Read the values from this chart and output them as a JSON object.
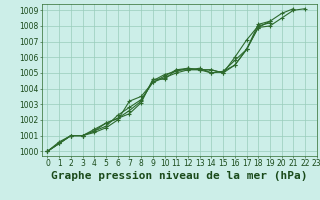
{
  "title": "Graphe pression niveau de la mer (hPa)",
  "bg_color": "#cceee8",
  "grid_color": "#99ccbb",
  "line_color": "#2d6a2d",
  "xlim": [
    -0.5,
    23
  ],
  "ylim": [
    999.7,
    1009.4
  ],
  "xticks": [
    0,
    1,
    2,
    3,
    4,
    5,
    6,
    7,
    8,
    9,
    10,
    11,
    12,
    13,
    14,
    15,
    16,
    17,
    18,
    19,
    20,
    21,
    22,
    23
  ],
  "yticks": [
    1000,
    1001,
    1002,
    1003,
    1004,
    1005,
    1006,
    1007,
    1008,
    1009
  ],
  "series": [
    [
      1000.0,
      1000.6,
      1001.0,
      1001.0,
      1001.4,
      1001.8,
      1002.1,
      1002.4,
      1003.1,
      1004.6,
      1004.6,
      1005.2,
      1005.2,
      1005.3,
      1005.0,
      1005.1,
      1005.5,
      1006.5,
      1007.9,
      1008.3,
      1008.8,
      1009.1,
      null,
      null
    ],
    [
      1000.0,
      1000.5,
      1001.0,
      1001.0,
      1001.3,
      1001.6,
      1002.3,
      1002.8,
      1003.3,
      1004.4,
      1004.7,
      1005.0,
      1005.2,
      1005.2,
      1005.0,
      1005.1,
      1005.8,
      1006.5,
      1008.1,
      1008.3,
      null,
      null,
      null,
      null
    ],
    [
      1000.0,
      1000.5,
      1001.0,
      1001.0,
      1001.2,
      1001.5,
      1002.0,
      1003.2,
      1003.5,
      1004.4,
      1004.8,
      1005.2,
      1005.3,
      1005.2,
      1005.2,
      1005.0,
      1006.0,
      1007.1,
      1008.0,
      1008.2,
      null,
      null,
      null,
      null
    ],
    [
      1000.0,
      1000.5,
      1001.0,
      1001.0,
      1001.3,
      1001.8,
      1002.1,
      1002.6,
      1003.2,
      1004.5,
      1004.9,
      1005.1,
      1005.3,
      1005.2,
      1005.2,
      1005.0,
      1005.5,
      1006.5,
      1007.9,
      1008.0,
      1008.5,
      1009.0,
      1009.1,
      null
    ]
  ],
  "title_fontsize": 8,
  "tick_fontsize": 5.5,
  "title_color": "#1a4a1a",
  "tick_color": "#1a4a1a"
}
